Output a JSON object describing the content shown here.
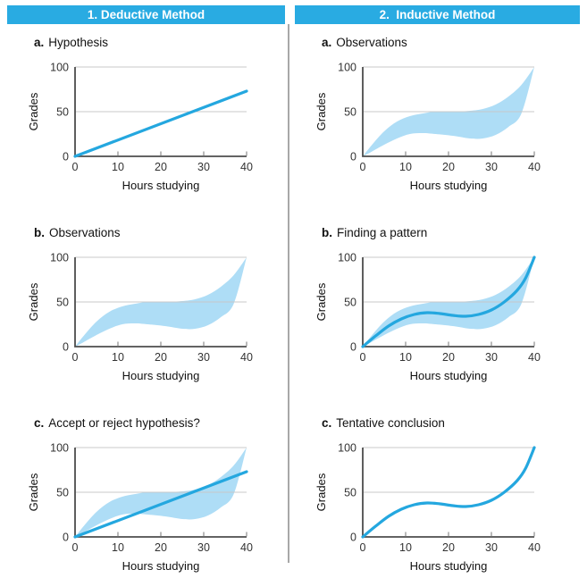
{
  "figure": {
    "columns": [
      {
        "header": "1. Deductive Method",
        "panels": [
          {
            "letter": "a.",
            "title": "Hypothesis"
          },
          {
            "letter": "b.",
            "title": "Observations"
          },
          {
            "letter": "c.",
            "title": "Accept or reject hypothesis?"
          }
        ]
      },
      {
        "header": "2.  Inductive Method",
        "panels": [
          {
            "letter": "a.",
            "title": "Observations"
          },
          {
            "letter": "b.",
            "title": "Finding a pattern"
          },
          {
            "letter": "c.",
            "title": "Tentative conclusion"
          }
        ]
      }
    ]
  },
  "chart_data": [
    {
      "panel": "deductive-a",
      "label": "Hypothesis",
      "type": "line",
      "xlabel": "Hours studying",
      "ylabel": "Grades",
      "xlim": [
        0,
        40
      ],
      "ylim": [
        0,
        100
      ],
      "xticks": [
        0,
        10,
        20,
        30,
        40
      ],
      "yticks": [
        0,
        50,
        100
      ],
      "grid": [
        50,
        100
      ],
      "series": [
        {
          "name": "hypothesis-line",
          "kind": "line",
          "smooth": false,
          "points": [
            [
              0,
              0
            ],
            [
              40,
              73
            ]
          ]
        }
      ]
    },
    {
      "panel": "deductive-b",
      "label": "Observations",
      "type": "area",
      "xlabel": "Hours studying",
      "ylabel": "Grades",
      "xlim": [
        0,
        40
      ],
      "ylim": [
        0,
        100
      ],
      "xticks": [
        0,
        10,
        20,
        30,
        40
      ],
      "yticks": [
        0,
        50,
        100
      ],
      "grid": [
        50,
        100
      ],
      "series": [
        {
          "name": "observations-band",
          "kind": "band",
          "upper": [
            [
              0,
              0
            ],
            [
              2,
              12
            ],
            [
              5,
              28
            ],
            [
              8,
              39
            ],
            [
              11,
              45
            ],
            [
              14,
              48
            ],
            [
              17,
              50
            ],
            [
              21,
              50
            ],
            [
              25,
              51
            ],
            [
              28,
              53
            ],
            [
              31,
              58
            ],
            [
              34,
              67
            ],
            [
              37,
              80
            ],
            [
              40,
              100
            ]
          ],
          "lower": [
            [
              0,
              0
            ],
            [
              2,
              5
            ],
            [
              5,
              13
            ],
            [
              8,
              20
            ],
            [
              11,
              25
            ],
            [
              14,
              26
            ],
            [
              17,
              25
            ],
            [
              21,
              23
            ],
            [
              25,
              20
            ],
            [
              28,
              20
            ],
            [
              31,
              24
            ],
            [
              34,
              33
            ],
            [
              37,
              48
            ],
            [
              40,
              100
            ]
          ]
        }
      ]
    },
    {
      "panel": "deductive-c",
      "label": "Accept or reject hypothesis?",
      "type": "area+line",
      "xlabel": "Hours studying",
      "ylabel": "Grades",
      "xlim": [
        0,
        40
      ],
      "ylim": [
        0,
        100
      ],
      "xticks": [
        0,
        10,
        20,
        30,
        40
      ],
      "yticks": [
        0,
        50,
        100
      ],
      "grid": [
        50,
        100
      ],
      "series": [
        {
          "name": "observations-band",
          "kind": "band",
          "upper": [
            [
              0,
              0
            ],
            [
              2,
              12
            ],
            [
              5,
              28
            ],
            [
              8,
              39
            ],
            [
              11,
              45
            ],
            [
              14,
              48
            ],
            [
              17,
              50
            ],
            [
              21,
              50
            ],
            [
              25,
              51
            ],
            [
              28,
              53
            ],
            [
              31,
              58
            ],
            [
              34,
              67
            ],
            [
              37,
              80
            ],
            [
              40,
              100
            ]
          ],
          "lower": [
            [
              0,
              0
            ],
            [
              2,
              5
            ],
            [
              5,
              13
            ],
            [
              8,
              20
            ],
            [
              11,
              25
            ],
            [
              14,
              26
            ],
            [
              17,
              25
            ],
            [
              21,
              23
            ],
            [
              25,
              20
            ],
            [
              28,
              20
            ],
            [
              31,
              24
            ],
            [
              34,
              33
            ],
            [
              37,
              48
            ],
            [
              40,
              100
            ]
          ]
        },
        {
          "name": "hypothesis-line",
          "kind": "line",
          "smooth": false,
          "points": [
            [
              0,
              0
            ],
            [
              40,
              73
            ]
          ]
        }
      ]
    },
    {
      "panel": "inductive-a",
      "label": "Observations",
      "type": "area",
      "xlabel": "Hours studying",
      "ylabel": "Grades",
      "xlim": [
        0,
        40
      ],
      "ylim": [
        0,
        100
      ],
      "xticks": [
        0,
        10,
        20,
        30,
        40
      ],
      "yticks": [
        0,
        50,
        100
      ],
      "grid": [
        50,
        100
      ],
      "series": [
        {
          "name": "observations-band",
          "kind": "band",
          "upper": [
            [
              0,
              0
            ],
            [
              2,
              12
            ],
            [
              5,
              28
            ],
            [
              8,
              39
            ],
            [
              11,
              45
            ],
            [
              14,
              48
            ],
            [
              17,
              50
            ],
            [
              21,
              50
            ],
            [
              25,
              51
            ],
            [
              28,
              53
            ],
            [
              31,
              58
            ],
            [
              34,
              67
            ],
            [
              37,
              80
            ],
            [
              40,
              100
            ]
          ],
          "lower": [
            [
              0,
              0
            ],
            [
              2,
              5
            ],
            [
              5,
              13
            ],
            [
              8,
              20
            ],
            [
              11,
              25
            ],
            [
              14,
              26
            ],
            [
              17,
              25
            ],
            [
              21,
              23
            ],
            [
              25,
              20
            ],
            [
              28,
              20
            ],
            [
              31,
              24
            ],
            [
              34,
              33
            ],
            [
              37,
              48
            ],
            [
              40,
              100
            ]
          ]
        }
      ]
    },
    {
      "panel": "inductive-b",
      "label": "Finding a pattern",
      "type": "area+line",
      "xlabel": "Hours studying",
      "ylabel": "Grades",
      "xlim": [
        0,
        40
      ],
      "ylim": [
        0,
        100
      ],
      "xticks": [
        0,
        10,
        20,
        30,
        40
      ],
      "yticks": [
        0,
        50,
        100
      ],
      "grid": [
        50,
        100
      ],
      "series": [
        {
          "name": "observations-band",
          "kind": "band",
          "upper": [
            [
              0,
              0
            ],
            [
              2,
              12
            ],
            [
              5,
              28
            ],
            [
              8,
              39
            ],
            [
              11,
              45
            ],
            [
              14,
              48
            ],
            [
              17,
              50
            ],
            [
              21,
              50
            ],
            [
              25,
              51
            ],
            [
              28,
              53
            ],
            [
              31,
              58
            ],
            [
              34,
              67
            ],
            [
              37,
              80
            ],
            [
              40,
              100
            ]
          ],
          "lower": [
            [
              0,
              0
            ],
            [
              2,
              5
            ],
            [
              5,
              13
            ],
            [
              8,
              20
            ],
            [
              11,
              25
            ],
            [
              14,
              26
            ],
            [
              17,
              25
            ],
            [
              21,
              23
            ],
            [
              25,
              20
            ],
            [
              28,
              20
            ],
            [
              31,
              24
            ],
            [
              34,
              33
            ],
            [
              37,
              48
            ],
            [
              40,
              100
            ]
          ]
        },
        {
          "name": "pattern-curve",
          "kind": "line",
          "smooth": true,
          "points": [
            [
              0,
              0
            ],
            [
              3,
              12
            ],
            [
              6,
              23
            ],
            [
              9,
              31
            ],
            [
              12,
              36
            ],
            [
              15,
              38
            ],
            [
              18,
              37
            ],
            [
              21,
              35
            ],
            [
              24,
              34
            ],
            [
              27,
              36
            ],
            [
              30,
              41
            ],
            [
              33,
              50
            ],
            [
              36,
              63
            ],
            [
              38,
              77
            ],
            [
              40,
              100
            ]
          ]
        }
      ]
    },
    {
      "panel": "inductive-c",
      "label": "Tentative conclusion",
      "type": "line",
      "xlabel": "Hours studying",
      "ylabel": "Grades",
      "xlim": [
        0,
        40
      ],
      "ylim": [
        0,
        100
      ],
      "xticks": [
        0,
        10,
        20,
        30,
        40
      ],
      "yticks": [
        0,
        50,
        100
      ],
      "grid": [
        50,
        100
      ],
      "series": [
        {
          "name": "conclusion-curve",
          "kind": "line",
          "smooth": true,
          "points": [
            [
              0,
              0
            ],
            [
              3,
              12
            ],
            [
              6,
              23
            ],
            [
              9,
              31
            ],
            [
              12,
              36
            ],
            [
              15,
              38
            ],
            [
              18,
              37
            ],
            [
              21,
              35
            ],
            [
              24,
              34
            ],
            [
              27,
              36
            ],
            [
              30,
              41
            ],
            [
              33,
              50
            ],
            [
              36,
              63
            ],
            [
              38,
              77
            ],
            [
              40,
              100
            ]
          ]
        }
      ]
    }
  ],
  "colors": {
    "header_bg": "#29abe2",
    "header_text": "#ffffff",
    "band": "#aeddf6",
    "line": "#24a7df",
    "grid": "#c8c8c8",
    "axis": "#4d4d4d",
    "tick": "#8c8c8c",
    "divider": "#a8a8a8"
  }
}
